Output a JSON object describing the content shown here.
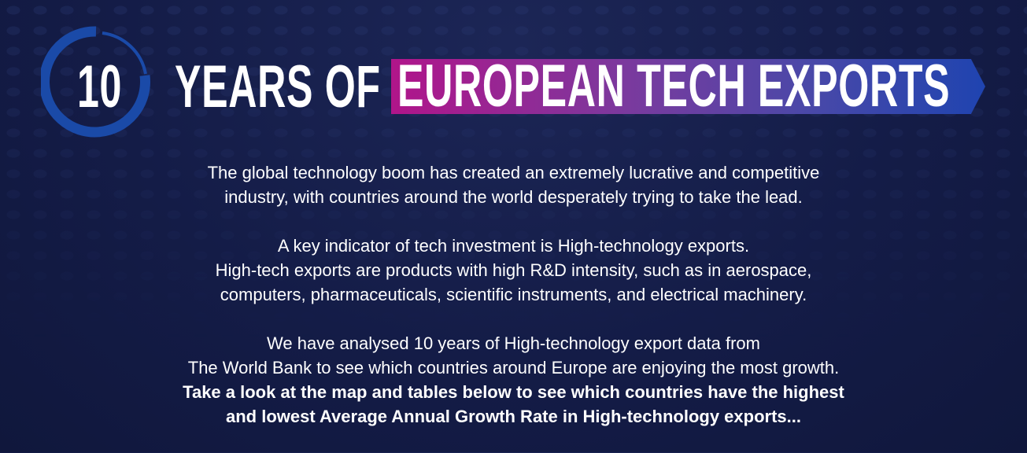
{
  "header": {
    "number": "10",
    "title_plain": "YEARS OF",
    "title_highlight": "EUROPEAN TECH EXPORTS",
    "colors": {
      "background": "#141c47",
      "ring": "#1a4aa8",
      "banner_start": "#b0158a",
      "banner_end": "#1f44b0"
    }
  },
  "intro": {
    "paragraph1": [
      "The global technology boom has created an extremely lucrative and competitive",
      "industry, with countries around the world desperately trying to take the lead."
    ],
    "paragraph2": [
      "A key indicator of tech investment is High-technology exports.",
      "High-tech exports are products with high R&D intensity, such as in aerospace,",
      "computers, pharmaceuticals, scientific instruments, and electrical machinery."
    ],
    "paragraph3": [
      "We have analysed 10 years of High-technology export data from",
      "The World Bank to see which countries around Europe are enjoying the most growth."
    ],
    "paragraph3_bold": [
      "Take a look at the map and tables below to see which countries have the highest",
      "and lowest Average Annual Growth Rate in High-technology exports..."
    ]
  }
}
